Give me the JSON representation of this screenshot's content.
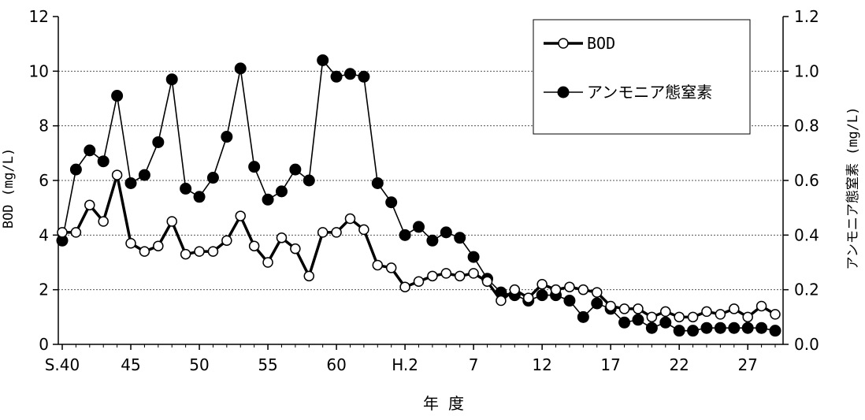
{
  "chart_data": {
    "type": "line",
    "title": "",
    "xlabel": "年 度",
    "ylabel_left": "BOD (mg/L)",
    "ylabel_right": "アンモニア態窒素 (mg/L)",
    "ylim_left": [
      0,
      12
    ],
    "ylim_right": [
      0,
      1.2
    ],
    "yticks_left": [
      "0",
      "2",
      "4",
      "6",
      "8",
      "10",
      "12"
    ],
    "yticks_right": [
      "0.0",
      "0.2",
      "0.4",
      "0.6",
      "0.8",
      "1.0",
      "1.2"
    ],
    "grid": "horizontal dotted",
    "legend_position": "top-right",
    "x_tick_labels": [
      {
        "label": "S.40",
        "index": 0
      },
      {
        "label": "45",
        "index": 5
      },
      {
        "label": "50",
        "index": 10
      },
      {
        "label": "55",
        "index": 15
      },
      {
        "label": "60",
        "index": 20
      },
      {
        "label": "H.2",
        "index": 25
      },
      {
        "label": "7",
        "index": 30
      },
      {
        "label": "12",
        "index": 35
      },
      {
        "label": "17",
        "index": 40
      },
      {
        "label": "22",
        "index": 45
      },
      {
        "label": "27",
        "index": 50
      }
    ],
    "series": [
      {
        "name": "BOD",
        "axis": "left",
        "marker": "open-circle",
        "color": "#000000",
        "values": [
          4.1,
          4.1,
          5.1,
          4.5,
          6.2,
          3.7,
          3.4,
          3.6,
          4.5,
          3.3,
          3.4,
          3.4,
          3.8,
          4.7,
          3.6,
          3.0,
          3.9,
          3.5,
          2.5,
          4.1,
          4.1,
          4.6,
          4.2,
          2.9,
          2.8,
          2.1,
          2.3,
          2.5,
          2.6,
          2.5,
          2.6,
          2.3,
          1.6,
          2.0,
          1.7,
          2.2,
          2.0,
          2.1,
          2.0,
          1.9,
          1.4,
          1.3,
          1.3,
          1.0,
          1.2,
          1.0,
          1.0,
          1.2,
          1.1,
          1.3,
          1.0,
          1.4,
          1.1
        ]
      },
      {
        "name": "アンモニア態窒素",
        "axis": "right",
        "marker": "filled-circle",
        "color": "#000000",
        "values": [
          0.38,
          0.64,
          0.71,
          0.67,
          0.91,
          0.59,
          0.62,
          0.74,
          0.97,
          0.57,
          0.54,
          0.61,
          0.76,
          1.01,
          0.65,
          0.53,
          0.56,
          0.64,
          0.6,
          1.04,
          0.98,
          0.99,
          0.98,
          0.59,
          0.52,
          0.4,
          0.43,
          0.38,
          0.41,
          0.39,
          0.32,
          0.24,
          0.19,
          0.18,
          0.16,
          0.18,
          0.18,
          0.16,
          0.1,
          0.15,
          0.13,
          0.08,
          0.09,
          0.06,
          0.08,
          0.05,
          0.05,
          0.06,
          0.06,
          0.06,
          0.06,
          0.06,
          0.05
        ]
      }
    ]
  }
}
